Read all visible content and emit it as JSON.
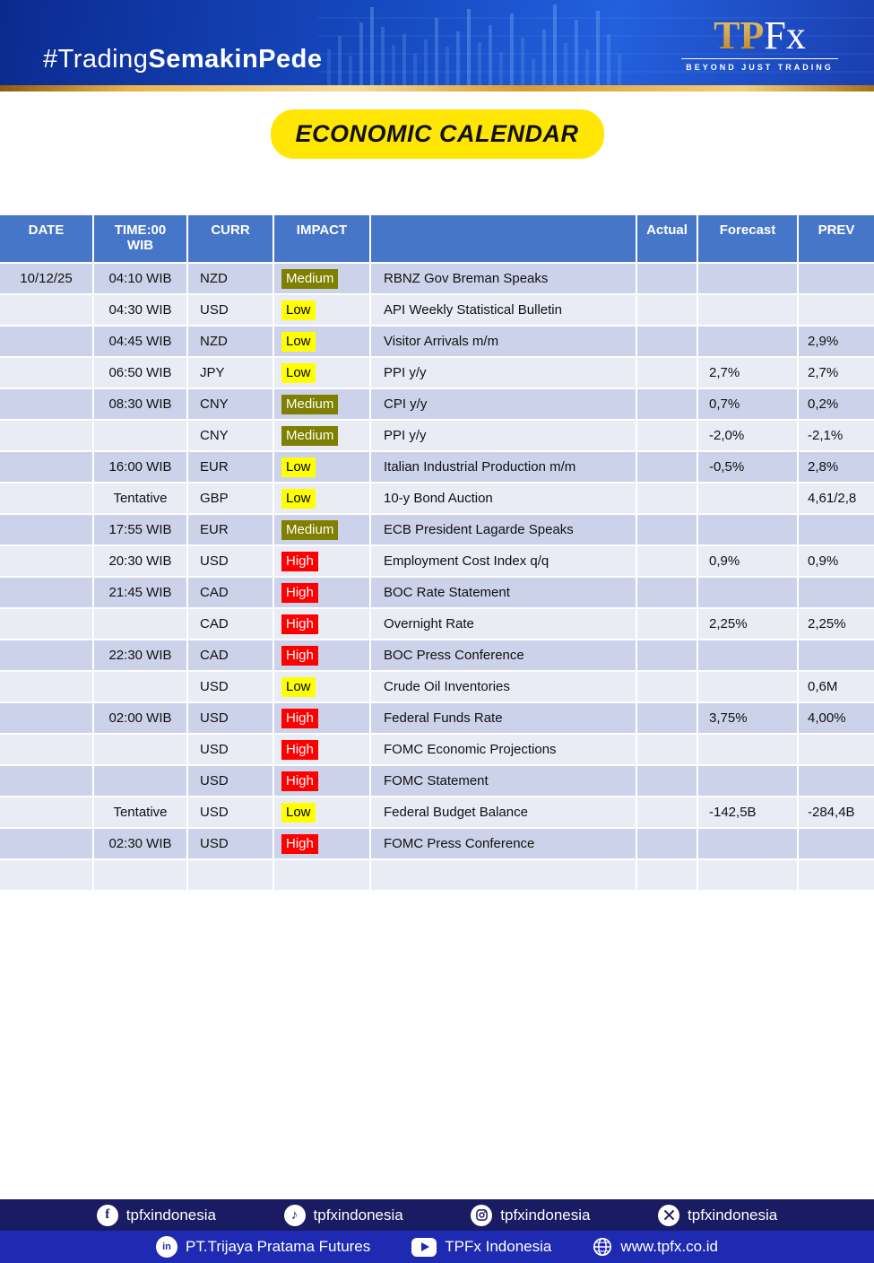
{
  "banner": {
    "hashtag_regular": "#Trading",
    "hashtag_bold": "SemakinPede",
    "logo_tp": "TP",
    "logo_fx": "Fx",
    "logo_tagline": "BEYOND JUST TRADING"
  },
  "title": "ECONOMIC CALENDAR",
  "table": {
    "headers": {
      "date": "DATE",
      "time_line1": "TIME:00",
      "time_line2": "WIB",
      "curr": "CURR",
      "impact": "IMPACT",
      "event": "",
      "actual": "Actual",
      "forecast": "Forecast",
      "prev": "PREV"
    },
    "impact_colors": {
      "High": "#ff0000",
      "Medium": "#7f7f00",
      "Low": "#ffff00"
    },
    "impact_text_colors": {
      "High": "#ffffff",
      "Medium": "#ffffff",
      "Low": "#000000"
    },
    "rows": [
      {
        "date": "10/12/25",
        "time": "04:10 WIB",
        "curr": "NZD",
        "impact": "Medium",
        "event": "RBNZ Gov Breman Speaks",
        "actual": "",
        "forecast": "",
        "prev": ""
      },
      {
        "date": "",
        "time": "04:30 WIB",
        "curr": "USD",
        "impact": "Low",
        "event": "API Weekly Statistical Bulletin",
        "actual": "",
        "forecast": "",
        "prev": ""
      },
      {
        "date": "",
        "time": "04:45 WIB",
        "curr": "NZD",
        "impact": "Low",
        "event": "Visitor Arrivals m/m",
        "actual": "",
        "forecast": "",
        "prev": "2,9%"
      },
      {
        "date": "",
        "time": "06:50 WIB",
        "curr": "JPY",
        "impact": "Low",
        "event": "PPI y/y",
        "actual": "",
        "forecast": "2,7%",
        "prev": "2,7%"
      },
      {
        "date": "",
        "time": "08:30 WIB",
        "curr": "CNY",
        "impact": "Medium",
        "event": "CPI y/y",
        "actual": "",
        "forecast": "0,7%",
        "prev": "0,2%"
      },
      {
        "date": "",
        "time": "",
        "curr": "CNY",
        "impact": "Medium",
        "event": "PPI y/y",
        "actual": "",
        "forecast": "-2,0%",
        "prev": "-2,1%"
      },
      {
        "date": "",
        "time": "16:00 WIB",
        "curr": "EUR",
        "impact": "Low",
        "event": "Italian Industrial Production m/m",
        "actual": "",
        "forecast": "-0,5%",
        "prev": "2,8%"
      },
      {
        "date": "",
        "time": "Tentative",
        "curr": "GBP",
        "impact": "Low",
        "event": "10-y Bond Auction",
        "actual": "",
        "forecast": "",
        "prev": "4,61/2,8"
      },
      {
        "date": "",
        "time": "17:55 WIB",
        "curr": "EUR",
        "impact": "Medium",
        "event": "ECB President Lagarde Speaks",
        "actual": "",
        "forecast": "",
        "prev": ""
      },
      {
        "date": "",
        "time": "20:30 WIB",
        "curr": "USD",
        "impact": "High",
        "event": "Employment Cost Index q/q",
        "actual": "",
        "forecast": "0,9%",
        "prev": "0,9%"
      },
      {
        "date": "",
        "time": "21:45 WIB",
        "curr": "CAD",
        "impact": "High",
        "event": "BOC Rate Statement",
        "actual": "",
        "forecast": "",
        "prev": ""
      },
      {
        "date": "",
        "time": "",
        "curr": "CAD",
        "impact": "High",
        "event": "Overnight Rate",
        "actual": "",
        "forecast": "2,25%",
        "prev": "2,25%"
      },
      {
        "date": "",
        "time": "22:30 WIB",
        "curr": "CAD",
        "impact": "High",
        "event": "BOC Press Conference",
        "actual": "",
        "forecast": "",
        "prev": ""
      },
      {
        "date": "",
        "time": "",
        "curr": "USD",
        "impact": "Low",
        "event": "Crude Oil Inventories",
        "actual": "",
        "forecast": "",
        "prev": "0,6M"
      },
      {
        "date": "",
        "time": "02:00 WIB",
        "curr": "USD",
        "impact": "High",
        "event": "Federal Funds Rate",
        "actual": "",
        "forecast": "3,75%",
        "prev": "4,00%"
      },
      {
        "date": "",
        "time": "",
        "curr": "USD",
        "impact": "High",
        "event": "FOMC Economic Projections",
        "actual": "",
        "forecast": "",
        "prev": ""
      },
      {
        "date": "",
        "time": "",
        "curr": "USD",
        "impact": "High",
        "event": "FOMC Statement",
        "actual": "",
        "forecast": "",
        "prev": ""
      },
      {
        "date": "",
        "time": "Tentative",
        "curr": "USD",
        "impact": "Low",
        "event": "Federal Budget Balance",
        "actual": "",
        "forecast": "-142,5B",
        "prev": "-284,4B"
      },
      {
        "date": "",
        "time": "02:30 WIB",
        "curr": "USD",
        "impact": "High",
        "event": "FOMC Press Conference",
        "actual": "",
        "forecast": "",
        "prev": ""
      },
      {
        "date": "",
        "time": "",
        "curr": "",
        "impact": "",
        "event": "",
        "actual": "",
        "forecast": "",
        "prev": ""
      }
    ]
  },
  "footer": {
    "row1": [
      {
        "icon": "facebook-icon",
        "label": "tpfxindonesia"
      },
      {
        "icon": "tiktok-icon",
        "label": "tpfxindonesia"
      },
      {
        "icon": "instagram-icon",
        "label": "tpfxindonesia"
      },
      {
        "icon": "x-icon",
        "label": "tpfxindonesia"
      }
    ],
    "row2": [
      {
        "icon": "linkedin-icon",
        "label": "PT.Trijaya Pratama Futures"
      },
      {
        "icon": "youtube-icon",
        "label": "TPFx Indonesia"
      },
      {
        "icon": "globe-icon",
        "label": "www.tpfx.co.id"
      }
    ]
  },
  "colors": {
    "header_blue": "#4676c8",
    "row_odd": "#ccd2e9",
    "row_even": "#e9ebf5",
    "title_pill": "#ffe605",
    "footer_bar1": "#191b63",
    "footer_bar2": "#1e2ab2",
    "gold": "#e9b54a"
  }
}
